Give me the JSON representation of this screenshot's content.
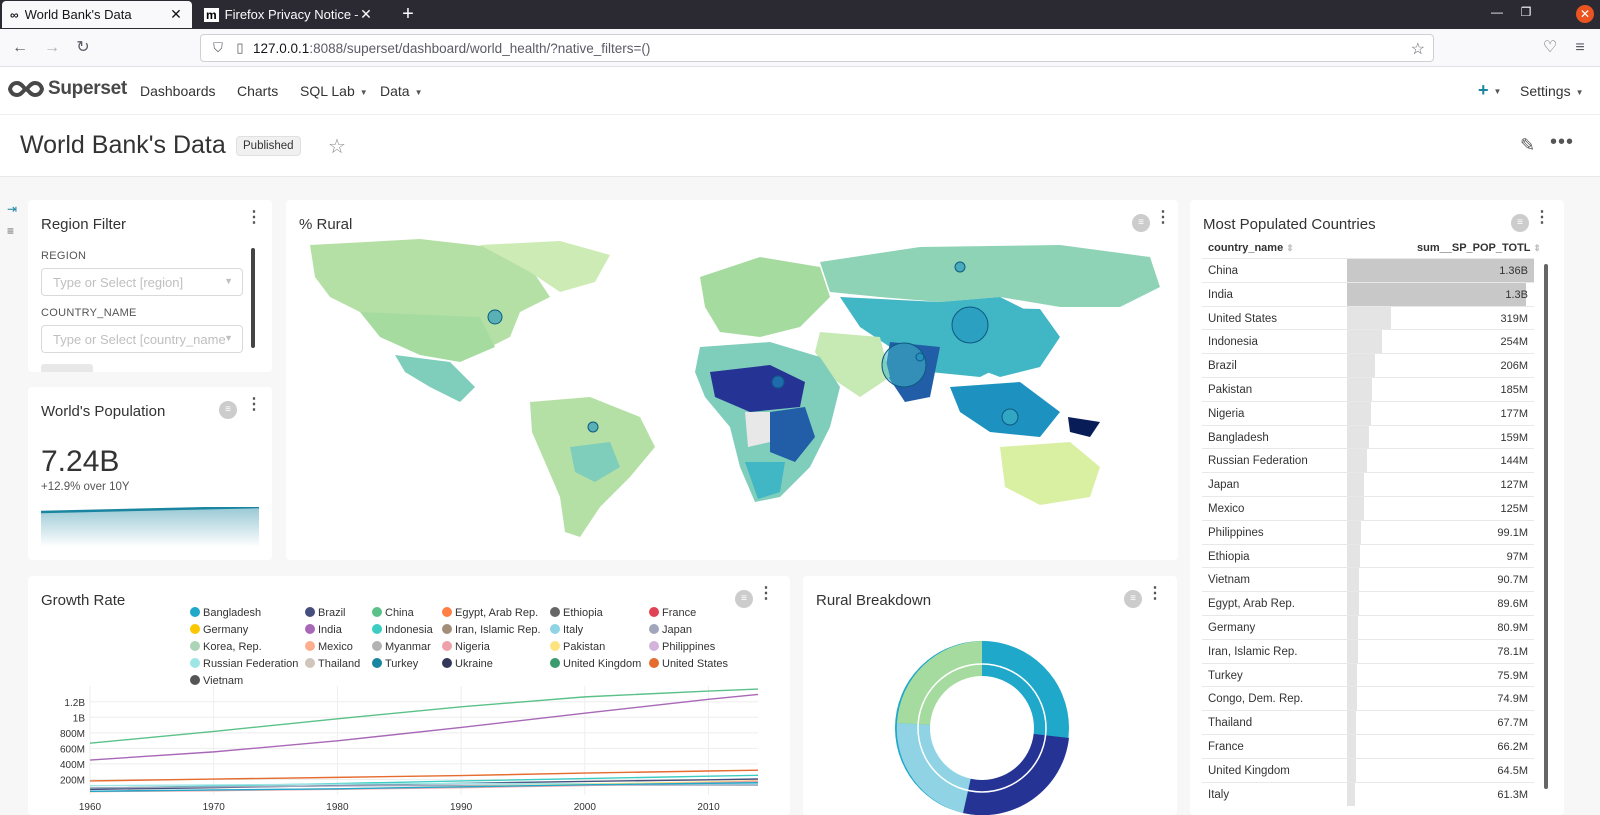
{
  "browser": {
    "tabs": [
      {
        "title": "World Bank's Data",
        "icon": "superset-icon"
      },
      {
        "title": "Firefox Privacy Notice —",
        "icon": "mozilla-icon"
      }
    ],
    "url_host": "127.0.0.1",
    "url_rest": ":8088/superset/dashboard/world_health/?native_filters=()"
  },
  "app": {
    "brand": "Superset",
    "menu": [
      "Dashboards",
      "Charts",
      "SQL Lab",
      "Data"
    ],
    "settings": "Settings"
  },
  "dashboard": {
    "title": "World Bank's Data",
    "status": "Published"
  },
  "region_filter": {
    "title": "Region Filter",
    "region_label": "REGION",
    "region_placeholder": "Type or Select [region]",
    "country_label": "COUNTRY_NAME",
    "country_placeholder": "Type or Select [country_name"
  },
  "world_population": {
    "title": "World's Population",
    "value": "7.24B",
    "subheader": "+12.9% over 10Y"
  },
  "rural_map": {
    "title": "% Rural"
  },
  "most_populated": {
    "title": "Most Populated Countries",
    "columns": [
      "country_name",
      "sum__SP_POP_TOTL"
    ],
    "rows": [
      {
        "name": "China",
        "value": "1.36B",
        "raw": 1.36
      },
      {
        "name": "India",
        "value": "1.3B",
        "raw": 1.3
      },
      {
        "name": "United States",
        "value": "319M",
        "raw": 0.319
      },
      {
        "name": "Indonesia",
        "value": "254M",
        "raw": 0.254
      },
      {
        "name": "Brazil",
        "value": "206M",
        "raw": 0.206
      },
      {
        "name": "Pakistan",
        "value": "185M",
        "raw": 0.185
      },
      {
        "name": "Nigeria",
        "value": "177M",
        "raw": 0.177
      },
      {
        "name": "Bangladesh",
        "value": "159M",
        "raw": 0.159
      },
      {
        "name": "Russian Federation",
        "value": "144M",
        "raw": 0.144
      },
      {
        "name": "Japan",
        "value": "127M",
        "raw": 0.127
      },
      {
        "name": "Mexico",
        "value": "125M",
        "raw": 0.125
      },
      {
        "name": "Philippines",
        "value": "99.1M",
        "raw": 0.0991
      },
      {
        "name": "Ethiopia",
        "value": "97M",
        "raw": 0.097
      },
      {
        "name": "Vietnam",
        "value": "90.7M",
        "raw": 0.0907
      },
      {
        "name": "Egypt, Arab Rep.",
        "value": "89.6M",
        "raw": 0.0896
      },
      {
        "name": "Germany",
        "value": "80.9M",
        "raw": 0.0809
      },
      {
        "name": "Iran, Islamic Rep.",
        "value": "78.1M",
        "raw": 0.0781
      },
      {
        "name": "Turkey",
        "value": "75.9M",
        "raw": 0.0759
      },
      {
        "name": "Congo, Dem. Rep.",
        "value": "74.9M",
        "raw": 0.0749
      },
      {
        "name": "Thailand",
        "value": "67.7M",
        "raw": 0.0677
      },
      {
        "name": "France",
        "value": "66.2M",
        "raw": 0.0662
      },
      {
        "name": "United Kingdom",
        "value": "64.5M",
        "raw": 0.0645
      },
      {
        "name": "Italy",
        "value": "61.3M",
        "raw": 0.0613
      }
    ]
  },
  "growth_rate": {
    "title": "Growth Rate",
    "legend": [
      {
        "name": "Bangladesh",
        "color": "#1fa8c9"
      },
      {
        "name": "Brazil",
        "color": "#454e7c"
      },
      {
        "name": "China",
        "color": "#5ac189"
      },
      {
        "name": "Egypt, Arab Rep.",
        "color": "#ff7f44"
      },
      {
        "name": "Ethiopia",
        "color": "#666666"
      },
      {
        "name": "France",
        "color": "#e04355"
      },
      {
        "name": "Germany",
        "color": "#fcc700"
      },
      {
        "name": "India",
        "color": "#a868b7"
      },
      {
        "name": "Indonesia",
        "color": "#3cccc1"
      },
      {
        "name": "Iran, Islamic Rep.",
        "color": "#a38f79"
      },
      {
        "name": "Italy",
        "color": "#8fd3e4"
      },
      {
        "name": "Japan",
        "color": "#a1a6bd"
      },
      {
        "name": "Korea, Rep.",
        "color": "#acd5b8"
      },
      {
        "name": "Mexico",
        "color": "#fdae8f"
      },
      {
        "name": "Myanmar",
        "color": "#b3b3b3"
      },
      {
        "name": "Nigeria",
        "color": "#efa1aa"
      },
      {
        "name": "Pakistan",
        "color": "#fde380"
      },
      {
        "name": "Philippines",
        "color": "#d3b3da"
      },
      {
        "name": "Russian Federation",
        "color": "#9ee5e5"
      },
      {
        "name": "Thailand",
        "color": "#d1c6bc"
      },
      {
        "name": "Turkey",
        "color": "#1a85a0"
      },
      {
        "name": "Ukraine",
        "color": "#33385a"
      },
      {
        "name": "United Kingdom",
        "color": "#3a9b6d"
      },
      {
        "name": "United States",
        "color": "#e56b2e"
      },
      {
        "name": "Vietnam",
        "color": "#555555"
      }
    ]
  },
  "chart_data": {
    "type": "line",
    "x": [
      1960,
      1970,
      1980,
      1990,
      2000,
      2010,
      2014
    ],
    "y_ticks": [
      "200M",
      "400M",
      "600M",
      "800M",
      "1B",
      "1.2B"
    ],
    "x_ticks": [
      "1960",
      "1970",
      "1980",
      "1990",
      "2000",
      "2010"
    ],
    "ylim": [
      0,
      1300000000
    ],
    "series": [
      {
        "name": "China",
        "values": [
          667000000,
          818000000,
          981000000,
          1135000000,
          1263000000,
          1338000000,
          1364000000
        ]
      },
      {
        "name": "India",
        "values": [
          450000000,
          555000000,
          697000000,
          870000000,
          1053000000,
          1231000000,
          1295000000
        ]
      },
      {
        "name": "United States",
        "values": [
          181000000,
          205000000,
          227000000,
          250000000,
          282000000,
          309000000,
          319000000
        ]
      },
      {
        "name": "Indonesia",
        "values": [
          88000000,
          115000000,
          147000000,
          181000000,
          211000000,
          242000000,
          254000000
        ]
      },
      {
        "name": "Brazil",
        "values": [
          72000000,
          95000000,
          121000000,
          150000000,
          175000000,
          196000000,
          206000000
        ]
      },
      {
        "name": "Russian Federation",
        "values": [
          120000000,
          130000000,
          139000000,
          148000000,
          146000000,
          143000000,
          144000000
        ]
      },
      {
        "name": "Japan",
        "values": [
          92000000,
          104000000,
          117000000,
          124000000,
          127000000,
          128000000,
          127000000
        ]
      },
      {
        "name": "Pakistan",
        "values": [
          45000000,
          58000000,
          78000000,
          107000000,
          138000000,
          170000000,
          185000000
        ]
      },
      {
        "name": "Nigeria",
        "values": [
          45000000,
          56000000,
          74000000,
          95000000,
          122000000,
          159000000,
          177000000
        ]
      },
      {
        "name": "Bangladesh",
        "values": [
          48000000,
          65000000,
          80000000,
          106000000,
          131000000,
          151000000,
          159000000
        ]
      }
    ]
  },
  "rural_breakdown": {
    "title": "Rural Breakdown"
  }
}
